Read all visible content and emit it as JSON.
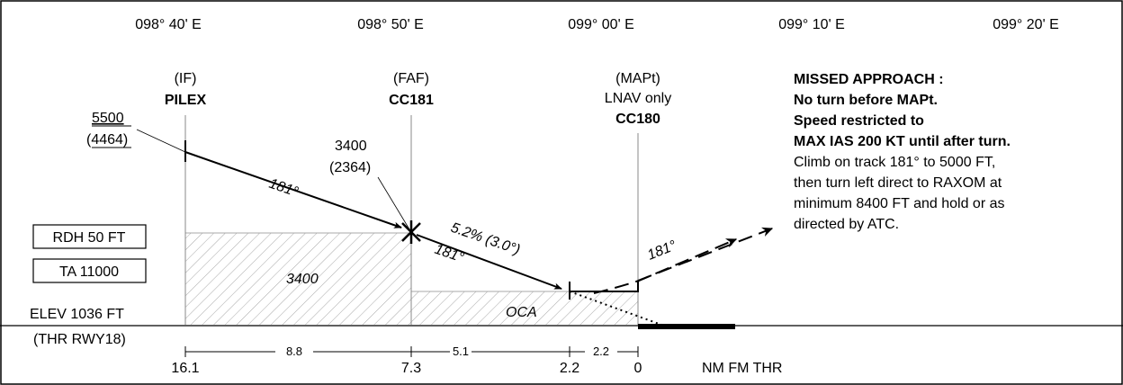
{
  "longitudes": [
    "098° 40' E",
    "098° 50' E",
    "099° 00' E",
    "099° 10' E",
    "099° 20' E"
  ],
  "fixes": {
    "if": {
      "role": "(IF)",
      "name": "PILEX",
      "altitude": "5500",
      "height": "(4464)"
    },
    "faf": {
      "role": "(FAF)",
      "name": "CC181",
      "altitude": "3400",
      "height": "(2364)"
    },
    "mapt": {
      "role": "(MAPt)",
      "note": "LNAV only",
      "name": "CC180"
    }
  },
  "tracks": {
    "initial": "181°",
    "final": "181°",
    "gradient": "5.2% (3.0°)",
    "missed": "181°"
  },
  "boxes": {
    "rdh": "RDH 50 FT",
    "ta": "TA 11000"
  },
  "elevation": {
    "elev": "ELEV 1036 FT",
    "thr": "(THR RWY18)"
  },
  "areas": {
    "initial_oca": "3400",
    "final_oca": "OCA"
  },
  "distances": {
    "positions": [
      "16.1",
      "7.3",
      "2.2",
      "0"
    ],
    "segments": [
      "8.8",
      "5.1",
      "2.2"
    ],
    "unit": "NM FM THR"
  },
  "missed_approach": {
    "bold_lines": [
      "MISSED APPROACH :",
      "No turn before MAPt.",
      "Speed restricted to",
      "MAX IAS 200 KT until after turn."
    ],
    "lines": [
      "Climb on track 181° to 5000 FT,",
      "then turn left direct to RAXOM at",
      "minimum 8400 FT and hold or as",
      "directed by ATC."
    ]
  }
}
